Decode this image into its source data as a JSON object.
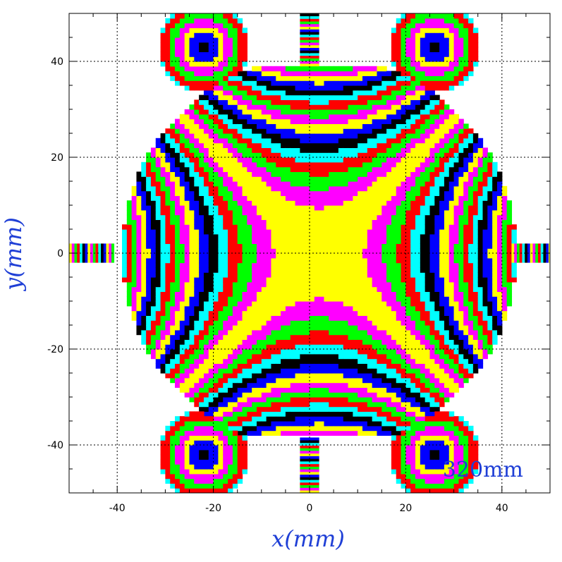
{
  "chart_data": {
    "type": "heatmap",
    "xlabel": "x(mm)",
    "ylabel": "y(mm)",
    "annotation": "320mm",
    "xlim": [
      -50,
      50
    ],
    "ylim": [
      -50,
      50
    ],
    "x_ticks": [
      -40,
      -20,
      0,
      20,
      40
    ],
    "y_ticks": [
      -40,
      -20,
      0,
      20,
      40
    ],
    "x_tick_labels": [
      "-40",
      "-20",
      "0",
      "20",
      "40"
    ],
    "y_tick_labels": [
      "-40",
      "-20",
      "0",
      "20",
      "40"
    ],
    "grid": true,
    "grid_style": "dotted",
    "color_cycle": [
      "#ffff00",
      "#ff00ff",
      "#00ff00",
      "#ff0000",
      "#00ffff",
      "#000000",
      "#0000ff"
    ],
    "field": "quadrupole saddle pattern, bands of (x^2 - y^2) centered near (2, 0) mm",
    "band_width": 90,
    "region": {
      "shape": "circle clipped by horizontal chords",
      "radius": 41,
      "center": [
        2,
        0
      ],
      "chord_y": [
        39,
        -38
      ],
      "notch_side_x": [
        -40,
        42
      ]
    },
    "corner_lobes": [
      {
        "center": [
          -22,
          43
        ]
      },
      {
        "center": [
          26,
          43
        ]
      },
      {
        "center": [
          -22,
          -42
        ]
      },
      {
        "center": [
          26,
          -42
        ]
      }
    ],
    "port_strips": [
      {
        "side": "top",
        "x": 0
      },
      {
        "side": "bottom",
        "x": 0
      },
      {
        "side": "left",
        "y": 0
      },
      {
        "side": "right",
        "y": 0
      }
    ]
  }
}
